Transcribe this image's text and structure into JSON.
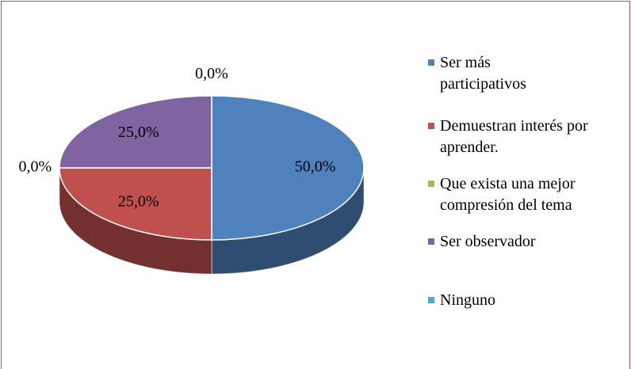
{
  "chart_data": {
    "type": "pie3d",
    "categories": [
      "Ser más participativos",
      "Demuestran interés por aprender.",
      "Que exista una mejor compresión del tema",
      "Ser observador",
      "Ninguno"
    ],
    "values": [
      50,
      25,
      0,
      25,
      0
    ],
    "value_labels": [
      "50,0%",
      "25,0%",
      "0,0%",
      "25,0%",
      "0,0%"
    ],
    "colors": [
      "#4f81bd",
      "#c0504d",
      "#9bbb59",
      "#8064a2",
      "#4bacc6"
    ],
    "legend": "right"
  }
}
